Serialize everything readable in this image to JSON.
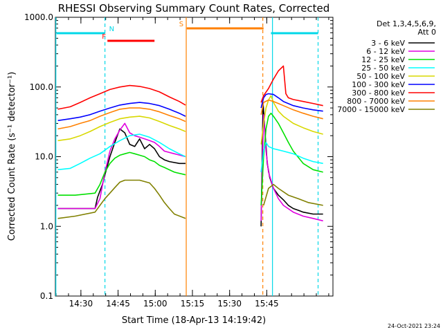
{
  "chart_data": {
    "type": "line",
    "title": "RHESSI Observing Summary Count Rates, Corrected",
    "xlabel": "Start Time (18-Apr-13 14:19:42)",
    "ylabel": "Corrected Count Rate (s⁻¹ detector⁻¹)",
    "y_scale": "log",
    "ylim": [
      0.1,
      1000
    ],
    "xlim_minutes": [
      0,
      112
    ],
    "ytick_labels": [
      "0.1",
      "1.0",
      "10.0",
      "100.0",
      "1000.0"
    ],
    "ytick_values": [
      0.1,
      1,
      10,
      100,
      1000
    ],
    "xtick_labels": [
      "14:30",
      "14:45",
      "15:00",
      "15:15",
      "15:30",
      "15:45"
    ],
    "xtick_values_minutes": [
      10.3,
      25.3,
      40.3,
      55.3,
      70.3,
      85.3
    ],
    "legend_header": [
      "Det 1,3,4,5,6,9,",
      "Att 0"
    ],
    "legend_placement": "right",
    "timestamp": "24-Oct-2021 23:24",
    "annotations": [
      {
        "label": "N",
        "color": "#00d8e8",
        "style": "bar",
        "x_start": 0.5,
        "x_end": 20,
        "x_start2": 87,
        "x_end2": 106
      },
      {
        "label": "F",
        "color": "#ff0000",
        "style": "bar",
        "x_start": 21,
        "x_end": 40
      },
      {
        "label": "S",
        "color": "#ff8000",
        "style": "bar",
        "x_start": 53,
        "x_end": 84
      }
    ],
    "vlines": [
      {
        "x": 0.2,
        "color": "#00d8e8",
        "dash": false
      },
      {
        "x": 20.0,
        "color": "#00d8e8",
        "dash": true
      },
      {
        "x": 52.8,
        "color": "#ff8000",
        "dash": false
      },
      {
        "x": 83.7,
        "color": "#ff8000",
        "dash": true
      },
      {
        "x": 87.6,
        "color": "#00d8e8",
        "dash": false
      },
      {
        "x": 106.0,
        "color": "#00d8e8",
        "dash": true
      }
    ],
    "series": [
      {
        "name": "3 - 6 keV",
        "color": "#000000",
        "x": [
          1,
          8,
          16,
          17,
          19,
          20,
          22,
          24,
          26,
          28,
          30,
          32,
          34,
          36,
          38,
          40,
          42,
          44,
          46,
          50,
          52.5,
          null,
          83,
          83.8,
          84.5,
          85.5,
          86.5,
          88,
          90,
          92,
          94,
          96,
          98,
          100,
          104,
          106,
          108
        ],
        "y": [
          1.8,
          1.8,
          1.8,
          2.6,
          4.0,
          5.5,
          10.0,
          16.0,
          25.0,
          22.0,
          15.0,
          14.0,
          18.0,
          13.0,
          15.0,
          13.0,
          10.0,
          9.0,
          8.5,
          8.0,
          8.0,
          null,
          1.0,
          60.0,
          25.0,
          8.0,
          5.0,
          3.5,
          2.8,
          2.4,
          2.0,
          1.8,
          1.7,
          1.6,
          1.5,
          1.5,
          1.5
        ]
      },
      {
        "name": "6 - 12 keV",
        "color": "#e000e0",
        "x": [
          1,
          10,
          16,
          18,
          20,
          22,
          24,
          26,
          28,
          30,
          32,
          34,
          36,
          38,
          40,
          42,
          44,
          48,
          52.5,
          null,
          83,
          84,
          85,
          86,
          88,
          90,
          92,
          96,
          100,
          104,
          108
        ],
        "y": [
          1.8,
          1.8,
          1.8,
          2.5,
          6.0,
          12.0,
          18.0,
          24.0,
          30.0,
          22.0,
          20.0,
          19.0,
          18.0,
          17.0,
          16.0,
          14.0,
          12.0,
          11.0,
          10.0,
          null,
          1.2,
          40.0,
          12.0,
          6.0,
          3.5,
          2.5,
          2.0,
          1.6,
          1.4,
          1.3,
          1.2
        ]
      },
      {
        "name": "12 - 25 keV",
        "color": "#00e000",
        "x": [
          1,
          8,
          16,
          18,
          20,
          22,
          24,
          26,
          28,
          30,
          32,
          34,
          36,
          38,
          40,
          42,
          44,
          48,
          52.5,
          null,
          83,
          84,
          85,
          86,
          87,
          88,
          90,
          92,
          94,
          96,
          100,
          104,
          108
        ],
        "y": [
          2.8,
          2.8,
          3.0,
          4.0,
          6.0,
          8.0,
          9.5,
          10.5,
          11.0,
          11.5,
          11.0,
          10.5,
          10.0,
          9.0,
          8.5,
          7.5,
          7.0,
          6.0,
          5.5,
          null,
          2.0,
          10.0,
          25.0,
          38.0,
          42.0,
          38.0,
          30.0,
          22.0,
          16.0,
          12.0,
          8.0,
          6.5,
          6.0
        ]
      },
      {
        "name": "25 - 50 keV",
        "color": "#00ffff",
        "x": [
          1,
          6,
          10,
          14,
          18,
          22,
          26,
          30,
          34,
          38,
          42,
          46,
          50,
          52.5,
          null,
          83,
          84,
          85,
          86,
          88,
          90,
          92,
          96,
          100,
          104,
          108
        ],
        "y": [
          6.5,
          6.8,
          8.0,
          9.5,
          11.0,
          14.0,
          17.0,
          20.0,
          21.0,
          19.0,
          16.0,
          13.0,
          11.0,
          10.0,
          null,
          6.0,
          12.0,
          16.0,
          14.0,
          13.0,
          12.5,
          12.0,
          11.0,
          9.5,
          8.5,
          8.0
        ]
      },
      {
        "name": "50 - 100 keV",
        "color": "#d8d800",
        "x": [
          1,
          6,
          10,
          14,
          18,
          22,
          26,
          30,
          34,
          38,
          42,
          46,
          50,
          52.5,
          null,
          83,
          84,
          85,
          86,
          87,
          88,
          90,
          92,
          96,
          100,
          104,
          108
        ],
        "y": [
          17.0,
          18.0,
          20.0,
          23.0,
          27.0,
          31.0,
          35.0,
          37.0,
          38.0,
          36.0,
          32.0,
          28.0,
          25.0,
          23.0,
          null,
          15.0,
          30.0,
          50.0,
          65.0,
          75.0,
          60.0,
          45.0,
          38.0,
          30.0,
          26.0,
          23.0,
          21.0
        ]
      },
      {
        "name": "100 - 300 keV",
        "color": "#0000ff",
        "x": [
          1,
          6,
          10,
          14,
          18,
          22,
          26,
          30,
          34,
          38,
          42,
          46,
          50,
          52.5,
          null,
          83,
          84,
          85,
          86,
          88,
          90,
          92,
          96,
          100,
          104,
          108
        ],
        "y": [
          33.0,
          35.0,
          37.0,
          40.0,
          45.0,
          50.0,
          55.0,
          58.0,
          60.0,
          58.0,
          54.0,
          48.0,
          42.0,
          38.0,
          null,
          50.0,
          70.0,
          78.0,
          80.0,
          78.0,
          70.0,
          62.0,
          54.0,
          50.0,
          47.0,
          45.0
        ]
      },
      {
        "name": "300 - 800 keV",
        "color": "#ff0000",
        "x": [
          1,
          6,
          10,
          14,
          18,
          22,
          26,
          30,
          34,
          38,
          42,
          46,
          50,
          52.5,
          null,
          83,
          84,
          86,
          88,
          90,
          92,
          93,
          94,
          96,
          100,
          104,
          108
        ],
        "y": [
          48.0,
          52.0,
          60.0,
          70.0,
          80.0,
          92.0,
          100.0,
          105.0,
          102.0,
          95.0,
          85.0,
          72.0,
          62.0,
          55.0,
          null,
          60.0,
          75.0,
          95.0,
          130.0,
          170.0,
          200.0,
          80.0,
          70.0,
          66.0,
          62.0,
          58.0,
          54.0
        ]
      },
      {
        "name": "800 - 7000 keV",
        "color": "#ff8000",
        "x": [
          1,
          6,
          10,
          14,
          18,
          22,
          26,
          30,
          34,
          38,
          42,
          46,
          50,
          52.5,
          null,
          83,
          84,
          86,
          88,
          90,
          92,
          96,
          100,
          104,
          108
        ],
        "y": [
          25.0,
          27.0,
          30.0,
          33.0,
          38.0,
          43.0,
          48.0,
          50.0,
          50.0,
          48.0,
          44.0,
          39.0,
          35.0,
          32.0,
          null,
          40.0,
          60.0,
          65.0,
          62.0,
          58.0,
          54.0,
          47.0,
          42.0,
          38.0,
          35.0
        ]
      },
      {
        "name": "7000 - 15000 keV",
        "color": "#808000",
        "x": [
          1,
          8,
          16,
          18,
          20,
          22,
          24,
          26,
          28,
          30,
          34,
          38,
          40,
          42,
          44,
          46,
          48,
          52.5,
          null,
          84,
          86,
          88,
          90,
          94,
          98,
          102,
          108
        ],
        "y": [
          1.3,
          1.4,
          1.6,
          2.0,
          2.5,
          3.0,
          3.6,
          4.3,
          4.6,
          4.6,
          4.6,
          4.2,
          3.5,
          2.8,
          2.2,
          1.8,
          1.5,
          1.3,
          null,
          2.0,
          3.5,
          4.0,
          3.5,
          2.8,
          2.5,
          2.2,
          2.0
        ]
      }
    ]
  }
}
